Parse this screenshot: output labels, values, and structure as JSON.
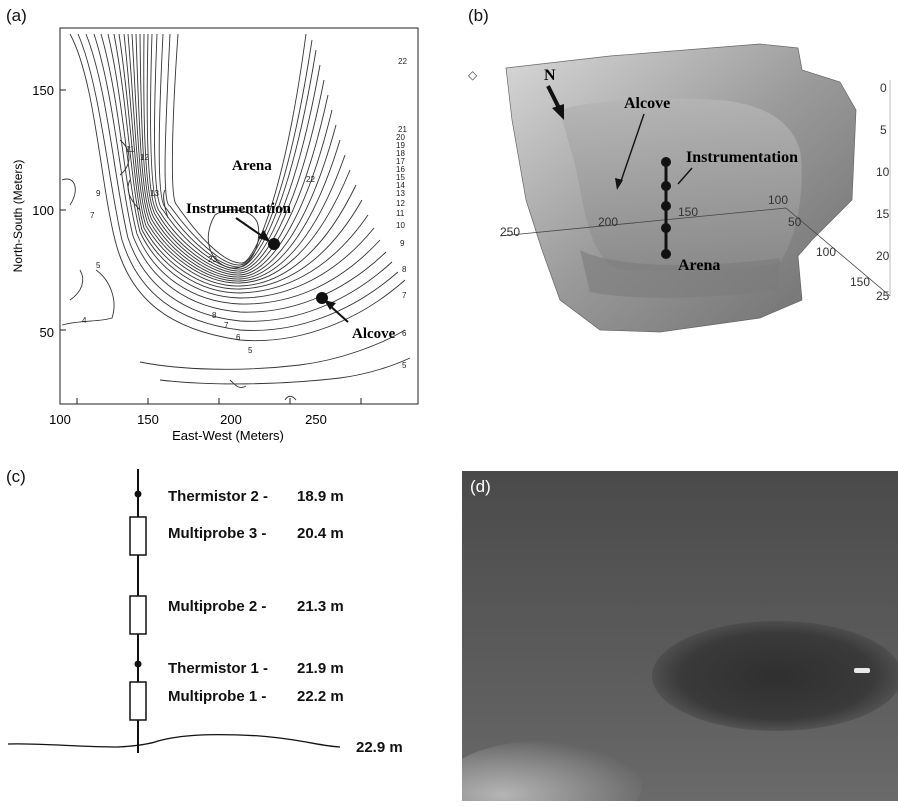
{
  "panel_a": {
    "label": "(a)",
    "xlabel": "East-West (Meters)",
    "ylabel": "North-South (Meters)",
    "xticks": [
      "100",
      "150",
      "200",
      "250"
    ],
    "yticks": [
      "50",
      "100",
      "150"
    ],
    "annotations": {
      "arena": "Arena",
      "instrumentation": "Instrumentation",
      "alcove": "Alcove"
    },
    "contour_labels": [
      "22",
      "21",
      "20",
      "19",
      "18",
      "17",
      "16",
      "15",
      "14",
      "13",
      "12",
      "11",
      "10",
      "9",
      "8",
      "7",
      "6",
      "5",
      "4",
      "11",
      "12",
      "13",
      "9",
      "7",
      "5",
      "23",
      "22",
      "5",
      "6",
      "7",
      "8"
    ]
  },
  "panel_b": {
    "label": "(b)",
    "annotations": {
      "north": "N",
      "alcove": "Alcove",
      "instrumentation": "Instrumentation",
      "arena": "Arena"
    },
    "depth_ticks": [
      "0",
      "5",
      "10",
      "15",
      "20",
      "25"
    ],
    "axis_ticks_ew": [
      "250",
      "200",
      "150",
      "100"
    ],
    "axis_ticks_ns": [
      "50",
      "100",
      "150"
    ]
  },
  "panel_c": {
    "label": "(c)",
    "items": [
      {
        "name": "Thermistor 2 -",
        "depth": "18.9 m"
      },
      {
        "name": "Multiprobe 3 -",
        "depth": "20.4 m"
      },
      {
        "name": "Multiprobe 2 -",
        "depth": "21.3 m"
      },
      {
        "name": "Thermistor 1 -",
        "depth": "21.9 m"
      },
      {
        "name": "Multiprobe 1 -",
        "depth": "22.2 m"
      }
    ],
    "bottom_depth": "22.9 m"
  },
  "panel_d": {
    "label": "(d)"
  }
}
